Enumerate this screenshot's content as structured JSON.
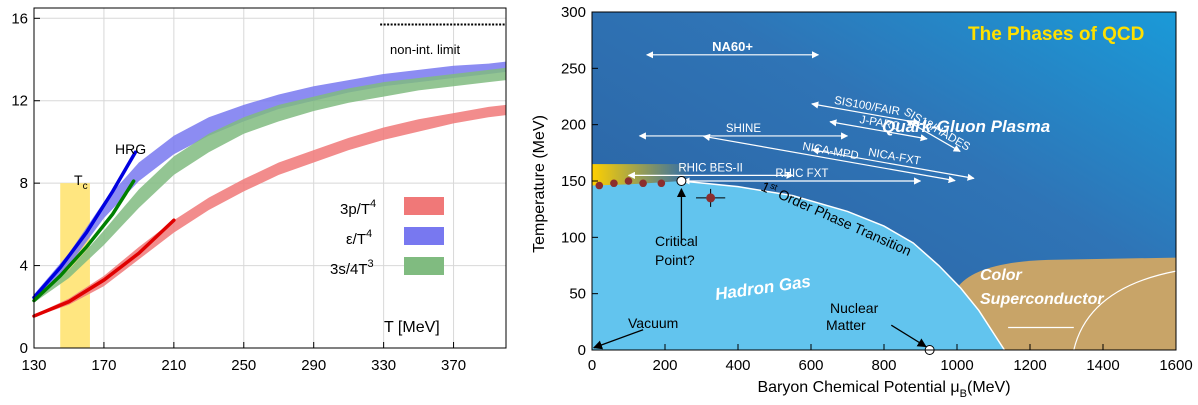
{
  "chart_data": [
    {
      "type": "line",
      "title": "",
      "xlabel": "T [MeV]",
      "ylabel": "",
      "xlim": [
        130,
        400
      ],
      "ylim": [
        0,
        16.5
      ],
      "x_ticks": [
        130,
        170,
        210,
        250,
        290,
        330,
        370
      ],
      "y_ticks": [
        0,
        4,
        8,
        12,
        16
      ],
      "tick_labels_y": [
        "0",
        "4",
        "8",
        "12",
        "16"
      ],
      "tick_labels_x": [
        "130",
        "170",
        "210",
        "250",
        "290",
        "330",
        "370"
      ],
      "grid": true,
      "legend_position": "right",
      "tc_label": "T",
      "tc_sub": "c",
      "tc_band": [
        145,
        162
      ],
      "tc_band_height": 8,
      "hrg_label": "HRG",
      "limit_label": "non-int. limit",
      "limit_value": 15.7,
      "limit_x_range": [
        328,
        400
      ],
      "series": [
        {
          "name": "3p/T",
          "name_sup": "4",
          "color": "#f07878",
          "x": [
            130,
            150,
            170,
            190,
            210,
            230,
            250,
            270,
            290,
            310,
            330,
            350,
            370,
            390,
            400
          ],
          "lower": [
            1.5,
            2.1,
            3.0,
            4.3,
            5.6,
            6.7,
            7.6,
            8.4,
            9.0,
            9.6,
            10.1,
            10.5,
            10.9,
            11.2,
            11.3
          ],
          "upper": [
            1.6,
            2.4,
            3.5,
            4.9,
            6.2,
            7.3,
            8.2,
            9.0,
            9.6,
            10.2,
            10.7,
            11.1,
            11.4,
            11.7,
            11.8
          ]
        },
        {
          "name": "ε/T",
          "name_sup": "4",
          "color": "#7878f0",
          "x": [
            130,
            150,
            170,
            190,
            210,
            230,
            250,
            270,
            290,
            310,
            330,
            350,
            370,
            390,
            400
          ],
          "lower": [
            2.4,
            4.0,
            6.3,
            8.1,
            9.4,
            10.3,
            11.0,
            11.6,
            12.0,
            12.4,
            12.7,
            12.9,
            13.1,
            13.3,
            13.4
          ],
          "upper": [
            2.6,
            4.6,
            7.1,
            9.0,
            10.3,
            11.2,
            11.8,
            12.3,
            12.7,
            13.0,
            13.3,
            13.5,
            13.7,
            13.8,
            13.9
          ]
        },
        {
          "name": "3s/4T",
          "name_sup": "3",
          "color": "#80bb80",
          "x": [
            130,
            150,
            170,
            190,
            210,
            230,
            250,
            270,
            290,
            310,
            330,
            350,
            370,
            390,
            400
          ],
          "lower": [
            2.2,
            3.4,
            5.0,
            6.8,
            8.4,
            9.5,
            10.4,
            11.0,
            11.5,
            11.9,
            12.2,
            12.5,
            12.7,
            12.9,
            13.0
          ],
          "upper": [
            2.4,
            3.8,
            5.7,
            7.7,
            9.3,
            10.4,
            11.2,
            11.8,
            12.2,
            12.6,
            12.9,
            13.1,
            13.3,
            13.5,
            13.6
          ]
        }
      ],
      "hrg_lines": [
        {
          "color": "#e00000",
          "x": [
            130,
            150,
            170,
            190,
            210
          ],
          "y": [
            1.55,
            2.25,
            3.3,
            4.6,
            6.2
          ]
        },
        {
          "color": "#0000e0",
          "x": [
            130,
            145,
            160,
            175,
            188
          ],
          "y": [
            2.45,
            3.9,
            5.6,
            7.6,
            9.5
          ]
        },
        {
          "color": "#008000",
          "x": [
            130,
            145,
            160,
            175,
            187
          ],
          "y": [
            2.3,
            3.5,
            4.9,
            6.5,
            8.1
          ]
        }
      ]
    },
    {
      "type": "diagram",
      "title": "The Phases of QCD",
      "xlabel": "Baryon Chemical Potential μ",
      "xlabel_sub": "B",
      "xlabel_unit": "(MeV)",
      "ylabel": "Temperature (MeV)",
      "xlim": [
        0,
        1600
      ],
      "ylim": [
        0,
        300
      ],
      "x_ticks": [
        0,
        200,
        400,
        600,
        800,
        1000,
        1200,
        1400,
        1600
      ],
      "y_ticks": [
        0,
        50,
        100,
        150,
        200,
        250,
        300
      ],
      "colors": {
        "qgp": "#2f6fb0",
        "qgp_light": "#1c8fd0",
        "hadron": "#62c4ee",
        "color_sc": "#c8a468",
        "title": "#ffe000"
      },
      "regions": {
        "qgp": "Quark-Gluon Plasma",
        "hadron": "Hadron Gas",
        "csc_line1": "Color",
        "csc_line2": "Superconductor"
      },
      "transition_label_pre": "1",
      "transition_label_sup": "st",
      "transition_label_post": " Order Phase Transition",
      "critical_point_line1": "Critical",
      "critical_point_line2": "Point?",
      "critical_point": [
        245,
        150
      ],
      "nuclear_matter_line1": "Nuclear",
      "nuclear_matter_line2": "Matter",
      "nuclear_matter_point": [
        925,
        0
      ],
      "vacuum_label": "Vacuum",
      "boundary_curve": [
        [
          0,
          146
        ],
        [
          100,
          147
        ],
        [
          200,
          149
        ],
        [
          245,
          150
        ],
        [
          400,
          145
        ],
        [
          550,
          137
        ],
        [
          700,
          123
        ],
        [
          800,
          110
        ],
        [
          880,
          95
        ],
        [
          950,
          75
        ],
        [
          1010,
          55
        ],
        [
          1060,
          35
        ],
        [
          1100,
          15
        ],
        [
          1130,
          0
        ]
      ],
      "lattice_points": [
        [
          20,
          146
        ],
        [
          60,
          148
        ],
        [
          100,
          150
        ],
        [
          140,
          148
        ],
        [
          190,
          148
        ]
      ],
      "data_point": {
        "x": 325,
        "y": 135,
        "xerr": 40,
        "yerr": 8
      },
      "experiments": [
        {
          "name": "NA60+",
          "bold": true,
          "range": [
            150,
            620
          ],
          "t": 262
        },
        {
          "name": "SIS100/FAIR",
          "range": [
            600,
            900
          ],
          "t": 210
        },
        {
          "name": "J-PARC",
          "range": [
            650,
            920
          ],
          "t": 195
        },
        {
          "name": "SIS18/HADES",
          "range": [
            850,
            1020
          ],
          "t": 190
        },
        {
          "name": "SHINE",
          "range": [
            130,
            700
          ],
          "t": 190
        },
        {
          "name": "NICA-MPD",
          "range": [
            300,
            1000
          ],
          "t": 170
        },
        {
          "name": "NICA-FXT",
          "range": [
            600,
            1050
          ],
          "t": 165
        },
        {
          "name": "RHIC BES-II",
          "range": [
            100,
            550
          ],
          "t": 155
        },
        {
          "name": "RHIC FXT",
          "range": [
            250,
            900
          ],
          "t": 150
        }
      ]
    }
  ]
}
